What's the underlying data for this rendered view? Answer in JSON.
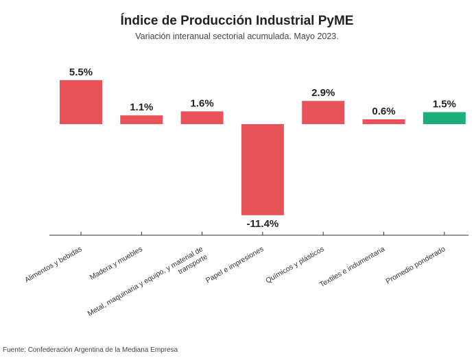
{
  "chart_data": {
    "type": "bar",
    "title": "Índice de Producción Industrial PyME",
    "subtitle": "Variación interanual sectorial acumulada. Mayo 2023.",
    "categories": [
      "Alimentos y bebidas",
      "Madera y muebles",
      "Metal, maquinaria y equipo, y material de transporte",
      "Papel e impresiones",
      "Químicos y plásticos",
      "Textiles e indumentaria",
      "Promedio ponderado"
    ],
    "category_lines": [
      [
        "Alimentos y bebidas"
      ],
      [
        "Madera y muebles"
      ],
      [
        "Metal, maquinaria y equipo, y material de",
        "transporte"
      ],
      [
        "Papel e impresiones"
      ],
      [
        "Químicos y plásticos"
      ],
      [
        "Textiles e indumentaria"
      ],
      [
        "Promedio ponderado"
      ]
    ],
    "values": [
      5.5,
      1.1,
      1.6,
      -11.4,
      2.9,
      0.6,
      1.5
    ],
    "value_labels": [
      "5.5%",
      "1.1%",
      "1.6%",
      "-11.4%",
      "2.9%",
      "0.6%",
      "1.5%"
    ],
    "colors": [
      "#e8535a",
      "#e8535a",
      "#e8535a",
      "#e8535a",
      "#e8535a",
      "#e8535a",
      "#1fae7a"
    ],
    "ylim": [
      -11.4,
      5.5
    ],
    "grid": false,
    "xlabel": "",
    "ylabel": ""
  },
  "source": "Fuente: Confederación Argentina de la Mediana Empresa"
}
